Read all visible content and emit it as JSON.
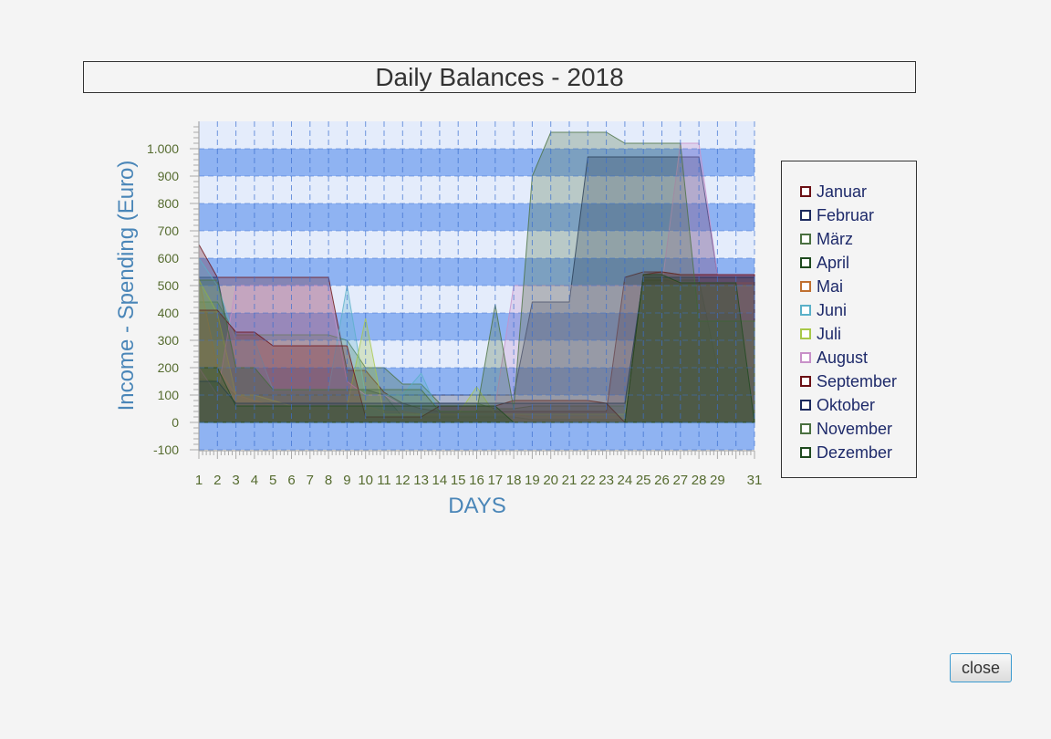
{
  "window": {
    "title": "Daily Balances - 2018"
  },
  "buttons": {
    "close_label": "close"
  },
  "chart_data": {
    "type": "area",
    "title": "Daily Balances - 2018",
    "xlabel": "DAYS",
    "ylabel": "Income - Spending (Euro)",
    "ylim": [
      -150,
      1100
    ],
    "xlim": [
      1,
      31
    ],
    "x_ticks": [
      1,
      2,
      3,
      4,
      5,
      6,
      7,
      8,
      9,
      10,
      11,
      12,
      13,
      14,
      15,
      16,
      17,
      18,
      19,
      20,
      21,
      22,
      23,
      24,
      25,
      26,
      27,
      28,
      29,
      31
    ],
    "y_ticks": [
      -100,
      0,
      100,
      200,
      300,
      400,
      500,
      600,
      700,
      800,
      900,
      1000
    ],
    "y_tick_labels": [
      "-100",
      "0",
      "100",
      "200",
      "300",
      "400",
      "500",
      "600",
      "700",
      "800",
      "900",
      "1.000"
    ],
    "grid": true,
    "legend_position": "right",
    "series": [
      {
        "name": "Januar",
        "color": "#6b0f14",
        "values": [
          650,
          530,
          530,
          530,
          530,
          530,
          530,
          530,
          190,
          190,
          110,
          70,
          50,
          40,
          40,
          40,
          40,
          40,
          40,
          40,
          40,
          40,
          40,
          530,
          550,
          550,
          540,
          540,
          540,
          540,
          540
        ]
      },
      {
        "name": "Februar",
        "color": "#1c2a5e",
        "values": [
          530,
          530,
          200,
          200,
          120,
          120,
          120,
          120,
          120,
          120,
          100,
          100,
          100,
          100,
          100,
          100,
          100,
          100,
          440,
          440,
          440,
          970,
          970,
          970,
          970,
          970,
          970,
          970,
          540,
          540,
          540
        ]
      },
      {
        "name": "März",
        "color": "#4a7040",
        "values": [
          440,
          440,
          320,
          320,
          320,
          320,
          320,
          320,
          300,
          200,
          200,
          140,
          140,
          70,
          70,
          70,
          50,
          50,
          60,
          60,
          60,
          60,
          60,
          60,
          530,
          530,
          530,
          530,
          530,
          530,
          530
        ]
      },
      {
        "name": "April",
        "color": "#1e4a1e",
        "values": [
          160,
          150,
          100,
          100,
          100,
          100,
          100,
          100,
          100,
          100,
          100,
          20,
          20,
          20,
          20,
          20,
          20,
          20,
          10,
          10,
          10,
          10,
          10,
          10,
          520,
          520,
          520,
          520,
          200,
          200,
          200
        ]
      },
      {
        "name": "Mai",
        "color": "#c07030",
        "values": [
          530,
          200,
          100,
          80,
          60,
          60,
          60,
          60,
          60,
          60,
          40,
          40,
          30,
          30,
          30,
          30,
          30,
          30,
          20,
          20,
          20,
          20,
          20,
          20,
          530,
          530,
          510,
          510,
          510,
          510,
          510
        ]
      },
      {
        "name": "Juni",
        "color": "#5ab0c8",
        "values": [
          600,
          500,
          300,
          300,
          120,
          120,
          120,
          120,
          500,
          100,
          100,
          100,
          180,
          30,
          30,
          30,
          30,
          30,
          30,
          30,
          30,
          30,
          30,
          30,
          500,
          500,
          500,
          500,
          500,
          500,
          500
        ]
      },
      {
        "name": "Juli",
        "color": "#a8c848",
        "values": [
          520,
          400,
          100,
          100,
          80,
          60,
          60,
          60,
          60,
          380,
          30,
          30,
          30,
          30,
          30,
          130,
          30,
          30,
          30,
          30,
          30,
          30,
          30,
          30,
          500,
          500,
          500,
          500,
          500,
          500,
          500
        ]
      },
      {
        "name": "August",
        "color": "#c890c8",
        "values": [
          200,
          100,
          500,
          500,
          500,
          500,
          500,
          500,
          150,
          100,
          100,
          60,
          60,
          60,
          60,
          60,
          60,
          500,
          500,
          500,
          500,
          500,
          500,
          500,
          500,
          500,
          1020,
          1020,
          540,
          540,
          540
        ]
      },
      {
        "name": "September",
        "color": "#6b0f14",
        "values": [
          410,
          410,
          330,
          330,
          280,
          280,
          280,
          280,
          280,
          20,
          20,
          20,
          20,
          60,
          60,
          60,
          60,
          80,
          80,
          80,
          80,
          80,
          70,
          0,
          540,
          550,
          540,
          540,
          540,
          540,
          540
        ]
      },
      {
        "name": "Oktober",
        "color": "#1c2a5e",
        "values": [
          150,
          150,
          70,
          70,
          70,
          70,
          70,
          70,
          70,
          70,
          70,
          70,
          70,
          70,
          70,
          70,
          70,
          70,
          70,
          70,
          70,
          70,
          70,
          70,
          530,
          530,
          530,
          530,
          530,
          530,
          530
        ]
      },
      {
        "name": "November",
        "color": "#4a7040",
        "values": [
          520,
          520,
          200,
          200,
          120,
          120,
          120,
          120,
          120,
          120,
          120,
          120,
          120,
          40,
          40,
          40,
          430,
          50,
          900,
          1060,
          1060,
          1060,
          1060,
          1020,
          1020,
          1020,
          1020,
          370,
          370,
          370,
          370
        ]
      },
      {
        "name": "Dezember",
        "color": "#1e4a1e",
        "values": [
          200,
          200,
          60,
          60,
          60,
          60,
          60,
          60,
          60,
          60,
          60,
          60,
          60,
          60,
          60,
          60,
          60,
          0,
          0,
          0,
          0,
          0,
          0,
          0,
          540,
          540,
          510,
          510,
          510,
          510,
          0
        ]
      }
    ]
  }
}
